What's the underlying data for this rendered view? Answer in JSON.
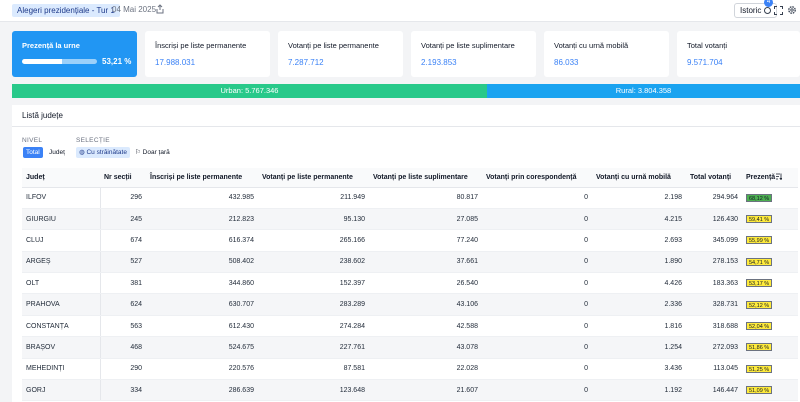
{
  "header": {
    "election": "Alegeri prezidențiale - Tur 1",
    "date": "04 Mai 2025",
    "istoric_label": "Istoric",
    "istoric_badge": "4"
  },
  "cards": [
    {
      "label": "Prezență la urne",
      "value": "53,21 %",
      "progress": 0.5321
    },
    {
      "label": "Înscriși pe liste permanente",
      "value": "17.988.031"
    },
    {
      "label": "Votanți pe liste permanente",
      "value": "7.287.712"
    },
    {
      "label": "Votanți pe liste suplimentare",
      "value": "2.193.853"
    },
    {
      "label": "Votanți cu urnă mobilă",
      "value": "86.033"
    },
    {
      "label": "Total votanți",
      "value": "9.571.704"
    }
  ],
  "urban_rural": {
    "urban_label": "Urban: 5.767.346",
    "rural_label": "Rural: 3.804.358",
    "urban_share": 0.6025
  },
  "colors": {
    "accent": "#2196f3",
    "urban": "#28c98a",
    "rural": "#1aa3f0",
    "presence_high": "#4caf50",
    "presence_mid": "#ffeb3b"
  },
  "panel": {
    "title": "Listă județe",
    "nivel_label": "NIVEL",
    "nivel_options": [
      "Total",
      "Județ"
    ],
    "selectie_label": "SELECȚIE",
    "selectie_options": [
      "Cu străinătate",
      "Doar țară"
    ]
  },
  "table": {
    "columns": [
      "Județ",
      "Nr secții",
      "Înscriși pe liste permanente",
      "Votanți pe liste permanente",
      "Votanți pe liste suplimentare",
      "Votanți prin corespondență",
      "Votanți cu urnă mobilă",
      "Total votanți",
      "Prezență"
    ],
    "rows": [
      [
        "ILFOV",
        "296",
        "432.985",
        "211.949",
        "80.817",
        "0",
        "2.198",
        "294.964",
        "68,12 %"
      ],
      [
        "GIURGIU",
        "245",
        "212.823",
        "95.130",
        "27.085",
        "0",
        "4.215",
        "126.430",
        "59,41 %"
      ],
      [
        "CLUJ",
        "674",
        "616.374",
        "265.166",
        "77.240",
        "0",
        "2.693",
        "345.099",
        "55,99 %"
      ],
      [
        "ARGEȘ",
        "527",
        "508.402",
        "238.602",
        "37.661",
        "0",
        "1.890",
        "278.153",
        "54,71 %"
      ],
      [
        "OLT",
        "381",
        "344.860",
        "152.397",
        "26.540",
        "0",
        "4.426",
        "183.363",
        "53,17 %"
      ],
      [
        "PRAHOVA",
        "624",
        "630.707",
        "283.289",
        "43.106",
        "0",
        "2.336",
        "328.731",
        "52,12 %"
      ],
      [
        "CONSTANȚA",
        "563",
        "612.430",
        "274.284",
        "42.588",
        "0",
        "1.816",
        "318.688",
        "52,04 %"
      ],
      [
        "BRAȘOV",
        "468",
        "524.675",
        "227.761",
        "43.078",
        "0",
        "1.254",
        "272.093",
        "51,86 %"
      ],
      [
        "MEHEDINȚI",
        "290",
        "220.576",
        "87.581",
        "22.028",
        "0",
        "3.436",
        "113.045",
        "51,25 %"
      ],
      [
        "GORJ",
        "334",
        "286.639",
        "123.648",
        "21.607",
        "0",
        "1.192",
        "146.447",
        "51,09 %"
      ]
    ],
    "presence_colors": [
      "#4caf50",
      "#ffeb3b",
      "#ffeb3b",
      "#ffeb3b",
      "#ffeb3b",
      "#ffeb3b",
      "#ffeb3b",
      "#ffeb3b",
      "#ffeb3b",
      "#ffeb3b"
    ]
  }
}
